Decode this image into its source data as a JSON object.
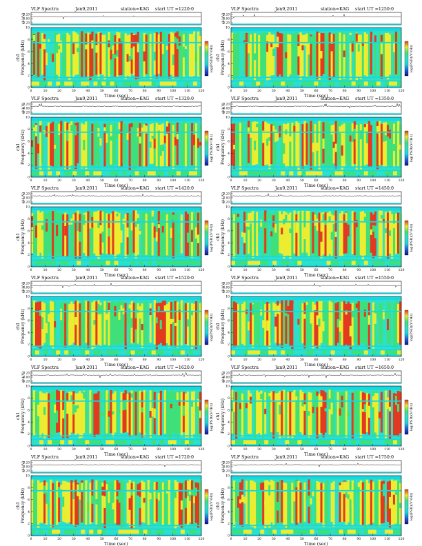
{
  "panel_labels": {
    "title": "VLF Spectra",
    "date": "Jan9,2011",
    "station": "station=KAG",
    "ut_prefix": "start  UT  =",
    "ch_label": "ch1(V)",
    "ylabel_prefix": "ch1",
    "ylabel": "Frequency (kHz)",
    "xlabel": "Time (sec)",
    "cbar_label": "log(PSD)(V²/Hz)"
  },
  "colors": {
    "background": "#15d8e0",
    "low": "#2ee0c8",
    "mid": "#3fe07a",
    "high": "#ecec30",
    "peak": "#e23a20",
    "line": "#000000"
  },
  "chart_data": [
    {
      "type": "heatmap",
      "start_ut": "1220:0",
      "xlim": [
        0,
        120
      ],
      "ylim": [
        0,
        10
      ],
      "x_ticks": [
        0,
        10,
        20,
        30,
        40,
        50,
        60,
        70,
        80,
        90,
        100,
        110,
        120
      ],
      "y_ticks": [
        0,
        2,
        4,
        6,
        8,
        10
      ],
      "ch_ticks": [
        "0.20",
        "0.00",
        "-0.20"
      ]
    },
    {
      "type": "heatmap",
      "start_ut": "1250:0",
      "xlim": [
        0,
        120
      ],
      "ylim": [
        0,
        10
      ],
      "x_ticks": [
        0,
        10,
        20,
        30,
        40,
        50,
        60,
        70,
        80,
        90,
        100,
        110,
        120
      ],
      "y_ticks": [
        0,
        2,
        4,
        6,
        8,
        10
      ],
      "ch_ticks": [
        "0.20",
        "0.00",
        "-0.20"
      ]
    },
    {
      "type": "heatmap",
      "start_ut": "1320:0",
      "xlim": [
        0,
        120
      ],
      "ylim": [
        0,
        10
      ],
      "x_ticks": [
        0,
        10,
        20,
        30,
        40,
        50,
        60,
        70,
        80,
        90,
        100,
        110,
        120
      ],
      "y_ticks": [
        0,
        2,
        4,
        6,
        8,
        10
      ],
      "ch_ticks": [
        "0.20",
        "0.00",
        "-0.20"
      ]
    },
    {
      "type": "heatmap",
      "start_ut": "1350:0",
      "xlim": [
        0,
        120
      ],
      "ylim": [
        0,
        10
      ],
      "x_ticks": [
        0,
        10,
        20,
        30,
        40,
        50,
        60,
        70,
        80,
        90,
        100,
        110,
        120
      ],
      "y_ticks": [
        0,
        2,
        4,
        6,
        8,
        10
      ],
      "ch_ticks": [
        "0.20",
        "0.00",
        "-0.20"
      ]
    },
    {
      "type": "heatmap",
      "start_ut": "1420:0",
      "xlim": [
        0,
        120
      ],
      "ylim": [
        0,
        10
      ],
      "x_ticks": [
        0,
        10,
        20,
        30,
        40,
        50,
        60,
        70,
        80,
        90,
        100,
        110,
        120
      ],
      "y_ticks": [
        0,
        2,
        4,
        6,
        8,
        10
      ],
      "ch_ticks": [
        "0.20",
        "0.00",
        "-0.20"
      ]
    },
    {
      "type": "heatmap",
      "start_ut": "1450:0",
      "xlim": [
        0,
        120
      ],
      "ylim": [
        0,
        10
      ],
      "x_ticks": [
        0,
        10,
        20,
        30,
        40,
        50,
        60,
        70,
        80,
        90,
        100,
        110,
        120
      ],
      "y_ticks": [
        0,
        2,
        4,
        6,
        8,
        10
      ],
      "ch_ticks": [
        "0.20",
        "0.00",
        "-0.20"
      ]
    },
    {
      "type": "heatmap",
      "start_ut": "1520:0",
      "xlim": [
        0,
        120
      ],
      "ylim": [
        0,
        10
      ],
      "x_ticks": [
        0,
        10,
        20,
        30,
        40,
        50,
        60,
        70,
        80,
        90,
        100,
        110,
        120
      ],
      "y_ticks": [
        0,
        2,
        4,
        6,
        8,
        10
      ],
      "ch_ticks": [
        "0.20",
        "0.00",
        "-0.20"
      ]
    },
    {
      "type": "heatmap",
      "start_ut": "1550:0",
      "xlim": [
        0,
        120
      ],
      "ylim": [
        0,
        10
      ],
      "x_ticks": [
        0,
        10,
        20,
        30,
        40,
        50,
        60,
        70,
        80,
        90,
        100,
        110,
        120
      ],
      "y_ticks": [
        0,
        2,
        4,
        6,
        8,
        10
      ],
      "ch_ticks": [
        "0.20",
        "0.00",
        "-0.20"
      ]
    },
    {
      "type": "heatmap",
      "start_ut": "1620:0",
      "xlim": [
        0,
        120
      ],
      "ylim": [
        0,
        10
      ],
      "x_ticks": [
        0,
        10,
        20,
        30,
        40,
        50,
        60,
        70,
        80,
        90,
        100,
        110,
        120
      ],
      "y_ticks": [
        0,
        2,
        4,
        6,
        8,
        10
      ],
      "ch_ticks": [
        "0.20",
        "0.00",
        "-0.20"
      ]
    },
    {
      "type": "heatmap",
      "start_ut": "1650:0",
      "xlim": [
        0,
        120
      ],
      "ylim": [
        0,
        10
      ],
      "x_ticks": [
        0,
        10,
        20,
        30,
        40,
        50,
        60,
        70,
        80,
        90,
        100,
        110,
        120
      ],
      "y_ticks": [
        0,
        2,
        4,
        6,
        8,
        10
      ],
      "ch_ticks": [
        "0.20",
        "0.00",
        "-0.20"
      ]
    },
    {
      "type": "heatmap",
      "start_ut": "1720:0",
      "xlim": [
        0,
        120
      ],
      "ylim": [
        0,
        10
      ],
      "x_ticks": [
        0,
        10,
        20,
        30,
        40,
        50,
        60,
        70,
        80,
        90,
        100,
        110,
        120
      ],
      "y_ticks": [
        0,
        2,
        4,
        6,
        8,
        10
      ],
      "ch_ticks": [
        "0.20",
        "0.00",
        "-0.20"
      ]
    },
    {
      "type": "heatmap",
      "start_ut": "1750:0",
      "xlim": [
        0,
        120
      ],
      "ylim": [
        0,
        10
      ],
      "x_ticks": [
        0,
        10,
        20,
        30,
        40,
        50,
        60,
        70,
        80,
        90,
        100,
        110,
        120
      ],
      "y_ticks": [
        0,
        2,
        4,
        6,
        8,
        10
      ],
      "ch_ticks": [
        "0.20",
        "0.00",
        "-0.20"
      ]
    }
  ]
}
